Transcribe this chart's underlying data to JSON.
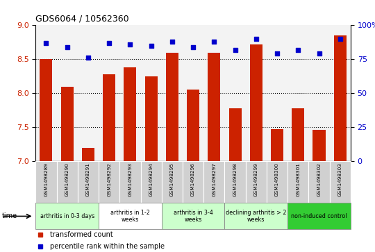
{
  "title": "GDS6064 / 10562360",
  "samples": [
    "GSM1498289",
    "GSM1498290",
    "GSM1498291",
    "GSM1498292",
    "GSM1498293",
    "GSM1498294",
    "GSM1498295",
    "GSM1498296",
    "GSM1498297",
    "GSM1498298",
    "GSM1498299",
    "GSM1498300",
    "GSM1498301",
    "GSM1498302",
    "GSM1498303"
  ],
  "transformed_count": [
    8.5,
    8.1,
    7.2,
    8.28,
    8.38,
    8.25,
    8.6,
    8.05,
    8.6,
    7.78,
    8.72,
    7.47,
    7.78,
    7.46,
    8.85
  ],
  "percentile_rank": [
    87,
    84,
    76,
    87,
    86,
    85,
    88,
    84,
    88,
    82,
    90,
    79,
    82,
    79,
    90
  ],
  "bar_color": "#cc2200",
  "dot_color": "#0000cc",
  "ylim_left": [
    7.0,
    9.0
  ],
  "ylim_right": [
    0,
    100
  ],
  "yticks_left": [
    7,
    7.5,
    8,
    8.5,
    9
  ],
  "yticks_right": [
    0,
    25,
    50,
    75,
    100
  ],
  "groups": [
    {
      "label": "arthritis in 0-3 days",
      "start": 0,
      "end": 3,
      "color": "#ccffcc"
    },
    {
      "label": "arthritis in 1-2\nweeks",
      "start": 3,
      "end": 6,
      "color": "#ffffff"
    },
    {
      "label": "arthritis in 3-4\nweeks",
      "start": 6,
      "end": 9,
      "color": "#ccffcc"
    },
    {
      "label": "declining arthritis > 2\nweeks",
      "start": 9,
      "end": 12,
      "color": "#ccffcc"
    },
    {
      "label": "non-induced control",
      "start": 12,
      "end": 15,
      "color": "#33cc33"
    }
  ],
  "time_label": "time",
  "legend_bar_label": "transformed count",
  "legend_dot_label": "percentile rank within the sample",
  "left_axis_color": "#cc2200",
  "right_axis_color": "#0000cc",
  "bar_width": 0.6,
  "sample_bg_color": "#d0d0d0",
  "sample_border_color": "#ffffff"
}
